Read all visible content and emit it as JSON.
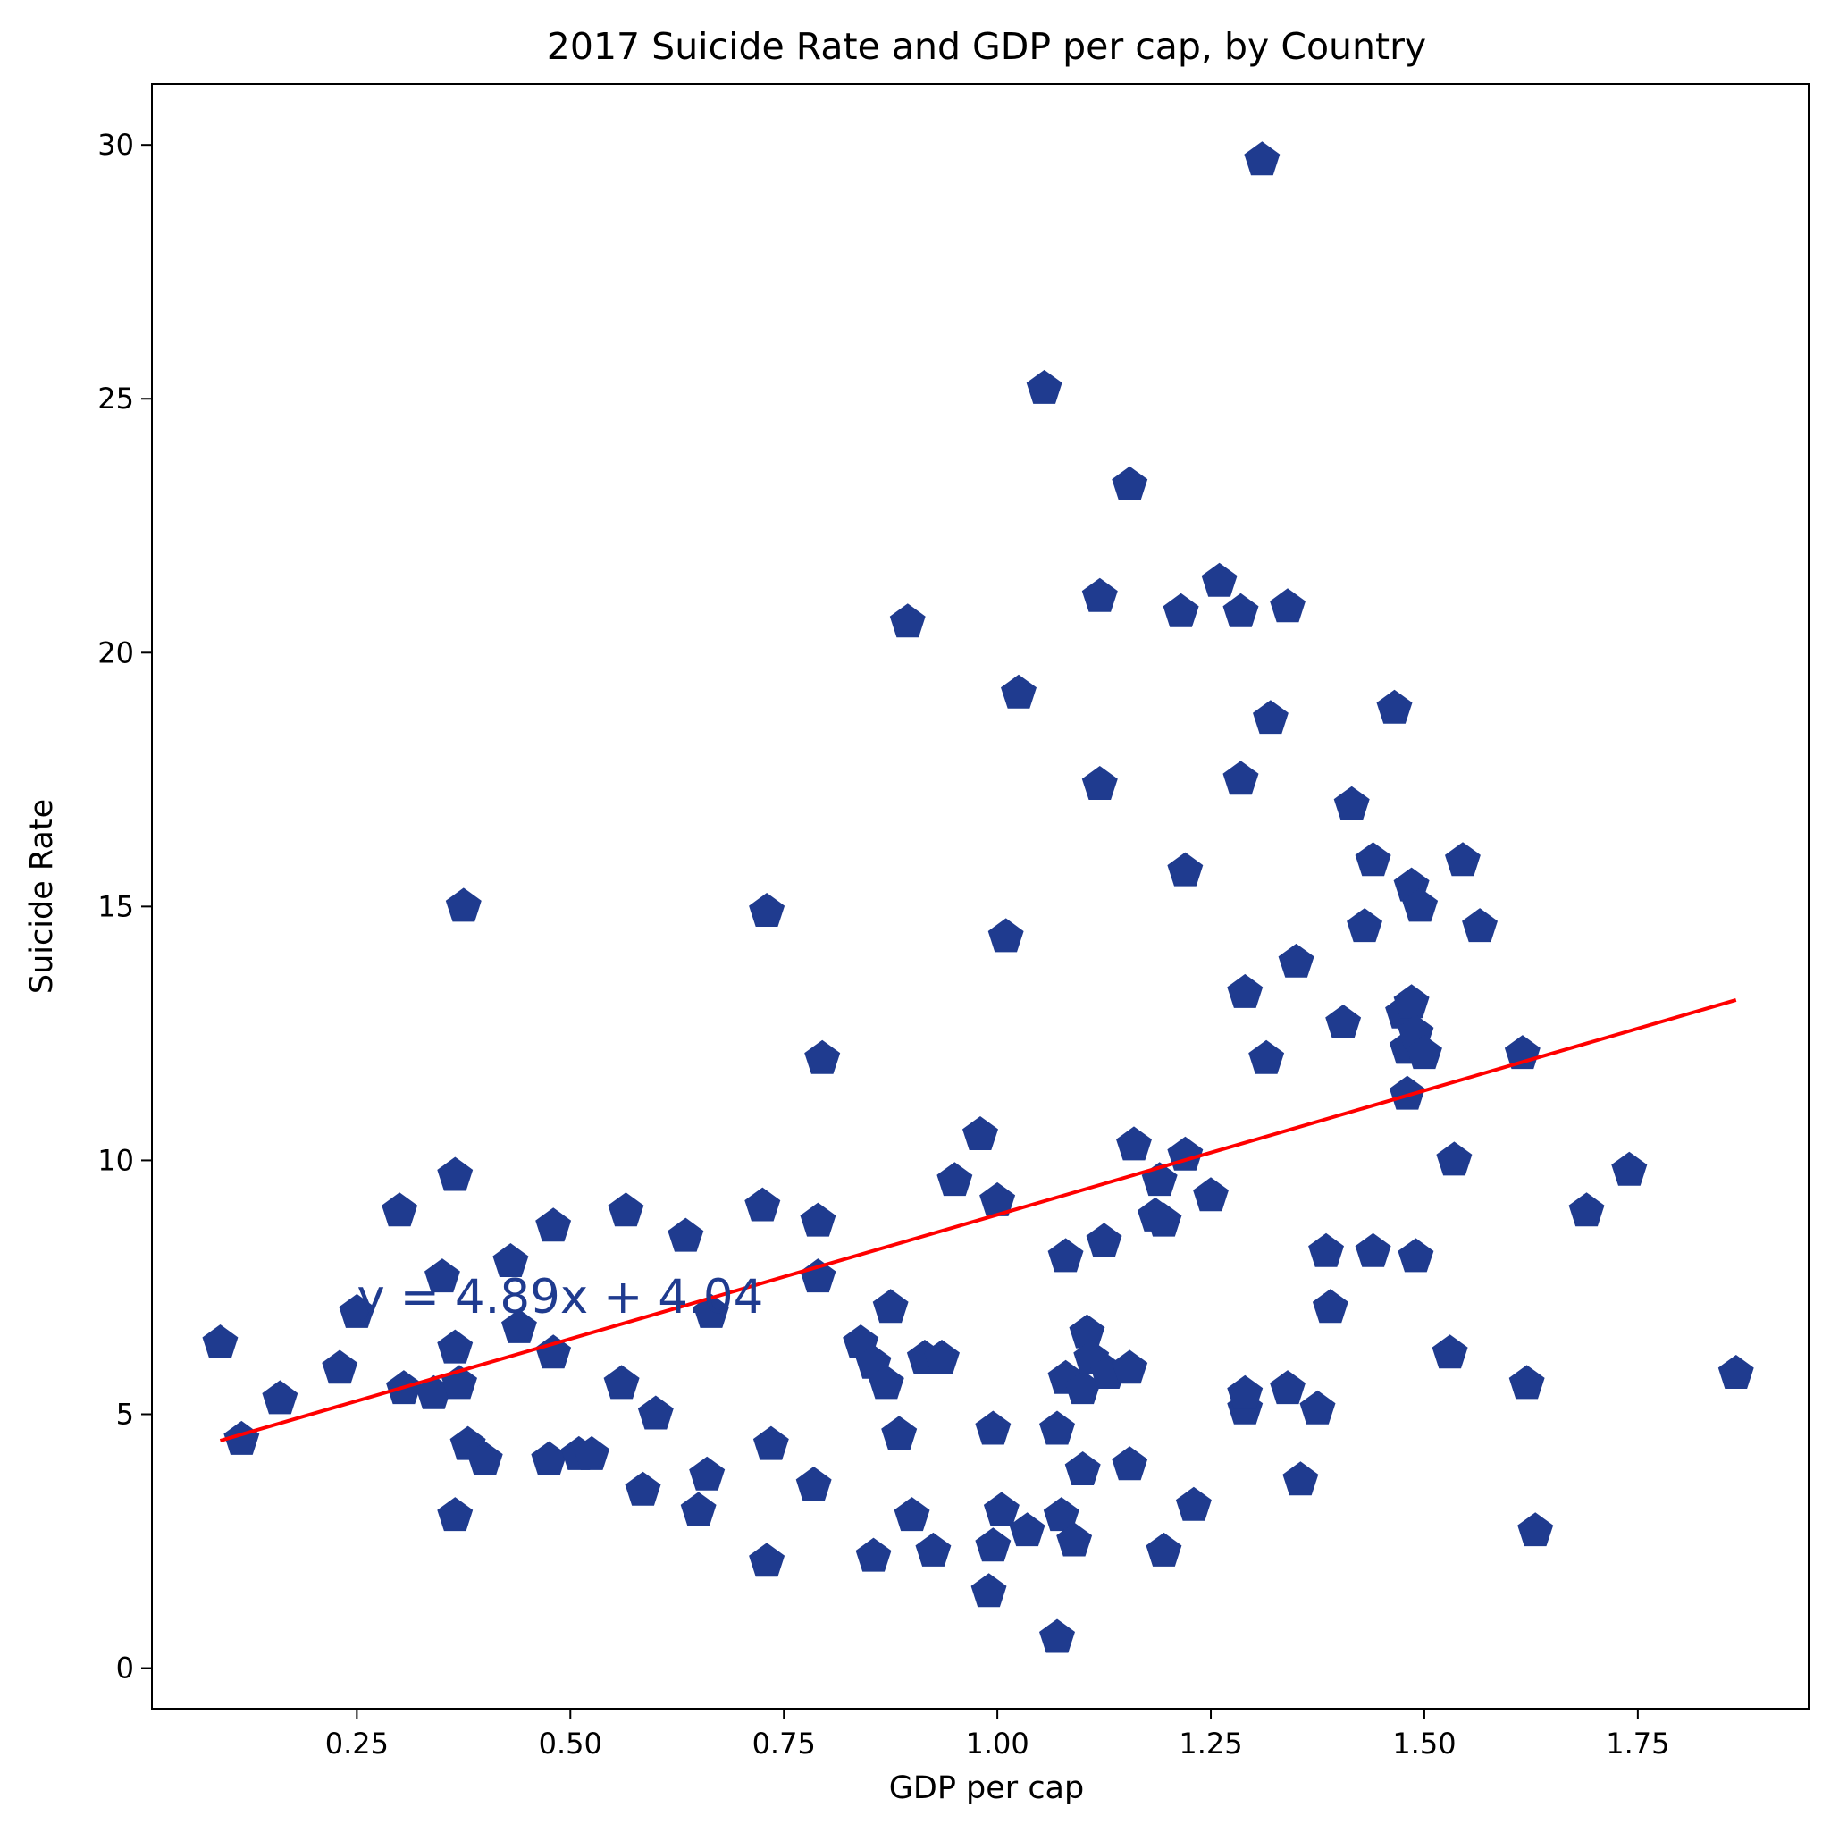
{
  "chart_data": {
    "type": "scatter",
    "title": "2017 Suicide Rate and GDP per cap, by Country",
    "xlabel": "GDP per cap",
    "ylabel": "Suicide Rate",
    "xlim": [
      0.01,
      1.95
    ],
    "ylim": [
      -0.8,
      31.2
    ],
    "xticks": [
      "0.25",
      "0.50",
      "0.75",
      "1.00",
      "1.25",
      "1.50",
      "1.75"
    ],
    "xtick_values": [
      0.25,
      0.5,
      0.75,
      1.0,
      1.25,
      1.5,
      1.75
    ],
    "yticks": [
      "0",
      "5",
      "10",
      "15",
      "20",
      "25",
      "30"
    ],
    "ytick_values": [
      0,
      5,
      10,
      15,
      20,
      25,
      30
    ],
    "grid": false,
    "marker": "pentagon",
    "colors": {
      "points": "#1f3b8f",
      "trendline": "#ff0000",
      "equation": "#1f3b8f",
      "axes": "#000000"
    },
    "points": [
      [
        0.09,
        6.4
      ],
      [
        0.115,
        4.5
      ],
      [
        0.16,
        5.3
      ],
      [
        0.23,
        5.9
      ],
      [
        0.25,
        7.0
      ],
      [
        0.3,
        9.0
      ],
      [
        0.305,
        5.5
      ],
      [
        0.34,
        5.4
      ],
      [
        0.35,
        7.7
      ],
      [
        0.365,
        9.7
      ],
      [
        0.365,
        6.3
      ],
      [
        0.37,
        5.6
      ],
      [
        0.375,
        15.0
      ],
      [
        0.365,
        3.0
      ],
      [
        0.38,
        4.4
      ],
      [
        0.4,
        4.1
      ],
      [
        0.43,
        8.0
      ],
      [
        0.44,
        6.7
      ],
      [
        0.475,
        4.1
      ],
      [
        0.48,
        8.7
      ],
      [
        0.48,
        6.2
      ],
      [
        0.51,
        4.2
      ],
      [
        0.525,
        4.2
      ],
      [
        0.565,
        9.0
      ],
      [
        0.56,
        5.6
      ],
      [
        0.585,
        3.5
      ],
      [
        0.6,
        5.0
      ],
      [
        0.635,
        8.5
      ],
      [
        0.65,
        3.1
      ],
      [
        0.66,
        3.8
      ],
      [
        0.665,
        7.0
      ],
      [
        0.725,
        9.1
      ],
      [
        0.73,
        14.9
      ],
      [
        0.73,
        2.1
      ],
      [
        0.735,
        4.4
      ],
      [
        0.785,
        3.6
      ],
      [
        0.79,
        8.8
      ],
      [
        0.79,
        7.7
      ],
      [
        0.795,
        12.0
      ],
      [
        0.84,
        6.4
      ],
      [
        0.855,
        6.0
      ],
      [
        0.855,
        2.2
      ],
      [
        0.87,
        5.6
      ],
      [
        0.875,
        7.1
      ],
      [
        0.885,
        4.6
      ],
      [
        0.895,
        20.6
      ],
      [
        0.9,
        3.0
      ],
      [
        0.915,
        6.1
      ],
      [
        0.925,
        2.3
      ],
      [
        0.935,
        6.1
      ],
      [
        0.95,
        9.6
      ],
      [
        0.98,
        10.5
      ],
      [
        0.99,
        1.5
      ],
      [
        0.995,
        2.4
      ],
      [
        0.995,
        4.7
      ],
      [
        1.0,
        9.2
      ],
      [
        1.005,
        3.1
      ],
      [
        1.01,
        14.4
      ],
      [
        1.025,
        19.2
      ],
      [
        1.035,
        2.7
      ],
      [
        1.055,
        25.2
      ],
      [
        1.07,
        0.6
      ],
      [
        1.07,
        4.7
      ],
      [
        1.075,
        3.0
      ],
      [
        1.08,
        5.7
      ],
      [
        1.08,
        8.1
      ],
      [
        1.09,
        2.5
      ],
      [
        1.1,
        3.9
      ],
      [
        1.1,
        5.5
      ],
      [
        1.105,
        6.6
      ],
      [
        1.11,
        6.1
      ],
      [
        1.12,
        21.1
      ],
      [
        1.12,
        17.4
      ],
      [
        1.125,
        8.4
      ],
      [
        1.13,
        5.8
      ],
      [
        1.155,
        23.3
      ],
      [
        1.155,
        5.9
      ],
      [
        1.155,
        4.0
      ],
      [
        1.16,
        10.3
      ],
      [
        1.185,
        8.9
      ],
      [
        1.19,
        9.6
      ],
      [
        1.195,
        8.8
      ],
      [
        1.195,
        2.3
      ],
      [
        1.215,
        20.8
      ],
      [
        1.22,
        10.1
      ],
      [
        1.22,
        15.7
      ],
      [
        1.23,
        3.2
      ],
      [
        1.25,
        9.3
      ],
      [
        1.26,
        21.4
      ],
      [
        1.285,
        20.8
      ],
      [
        1.285,
        17.5
      ],
      [
        1.29,
        13.3
      ],
      [
        1.29,
        5.1
      ],
      [
        1.29,
        5.4
      ],
      [
        1.31,
        29.7
      ],
      [
        1.315,
        12.0
      ],
      [
        1.32,
        18.7
      ],
      [
        1.34,
        20.9
      ],
      [
        1.34,
        5.5
      ],
      [
        1.35,
        13.9
      ],
      [
        1.355,
        3.7
      ],
      [
        1.375,
        5.1
      ],
      [
        1.385,
        8.2
      ],
      [
        1.39,
        7.1
      ],
      [
        1.405,
        12.7
      ],
      [
        1.415,
        17.0
      ],
      [
        1.43,
        14.6
      ],
      [
        1.44,
        8.2
      ],
      [
        1.44,
        15.9
      ],
      [
        1.465,
        18.9
      ],
      [
        1.475,
        12.9
      ],
      [
        1.48,
        12.2
      ],
      [
        1.485,
        13.1
      ],
      [
        1.485,
        15.4
      ],
      [
        1.48,
        11.3
      ],
      [
        1.49,
        12.5
      ],
      [
        1.495,
        15.0
      ],
      [
        1.49,
        8.1
      ],
      [
        1.5,
        12.1
      ],
      [
        1.53,
        6.2
      ],
      [
        1.535,
        10.0
      ],
      [
        1.545,
        15.9
      ],
      [
        1.565,
        14.6
      ],
      [
        1.615,
        12.1
      ],
      [
        1.62,
        5.6
      ],
      [
        1.63,
        2.7
      ],
      [
        1.69,
        9.0
      ],
      [
        1.74,
        9.8
      ],
      [
        1.865,
        5.8
      ]
    ],
    "trendline": {
      "slope": 4.89,
      "intercept": 4.04,
      "x_range": [
        0.09,
        1.865
      ]
    },
    "equation_text": "y = 4.89x + 4.04",
    "equation_anchor": [
      0.25,
      7.0
    ]
  }
}
